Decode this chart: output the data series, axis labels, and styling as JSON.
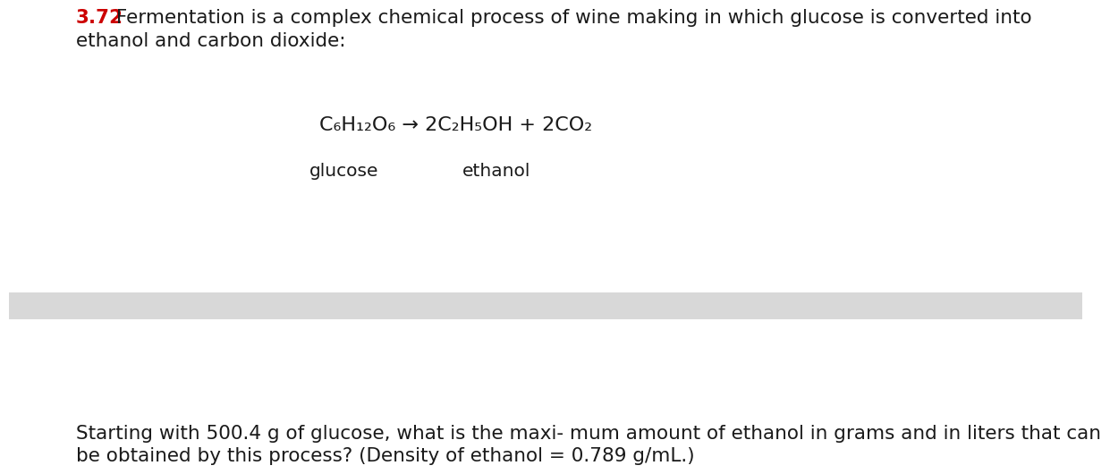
{
  "background_color": "#ffffff",
  "divider_color": "#d8d8d8",
  "problem_number": "3.72",
  "problem_number_color": "#cc0000",
  "intro_text_line1": " Fermentation is a complex chemical process of wine making in which glucose is converted into",
  "intro_text_line2": "ethanol and carbon dioxide:",
  "equation_line": "C₆H₁₂O₆ → 2C₂H₅OH + 2CO₂",
  "label_glucose": "glucose",
  "label_ethanol": "ethanol",
  "question_line1": "Starting with 500.4 g of glucose, what is the maxi- mum amount of ethanol in grams and in liters that can",
  "question_line2": "be obtained by this process? (Density of ethanol = 0.789 g/mL.)",
  "font_size_main": 15.5,
  "font_size_equation": 16.0,
  "font_size_label": 14.5,
  "font_size_number": 15.5
}
